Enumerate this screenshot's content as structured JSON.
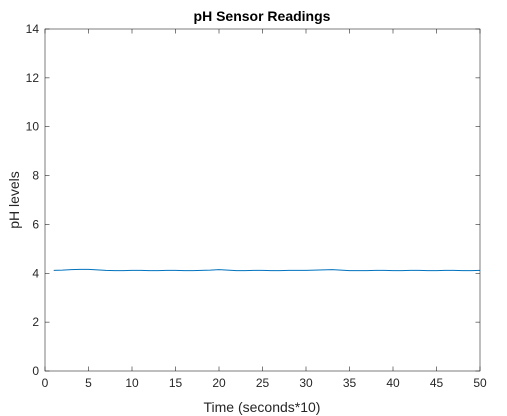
{
  "chart_data": {
    "type": "line",
    "title": "pH Sensor Readings",
    "xlabel": "Time (seconds*10)",
    "ylabel": "pH levels",
    "xlim": [
      0,
      50
    ],
    "ylim": [
      0,
      14
    ],
    "xticks": [
      0,
      5,
      10,
      15,
      20,
      25,
      30,
      35,
      40,
      45,
      50
    ],
    "yticks": [
      0,
      2,
      4,
      6,
      8,
      10,
      12,
      14
    ],
    "grid": false,
    "box": true,
    "series": [
      {
        "color": "#0072bd",
        "x": [
          1,
          2,
          3,
          4,
          5,
          6,
          7,
          8,
          9,
          10,
          11,
          12,
          13,
          14,
          15,
          16,
          17,
          18,
          19,
          20,
          21,
          22,
          23,
          24,
          25,
          26,
          27,
          28,
          29,
          30,
          31,
          32,
          33,
          34,
          35,
          36,
          37,
          38,
          39,
          40,
          41,
          42,
          43,
          44,
          45,
          46,
          47,
          48,
          49,
          50
        ],
        "y": [
          4.12,
          4.13,
          4.15,
          4.16,
          4.16,
          4.14,
          4.12,
          4.11,
          4.11,
          4.12,
          4.12,
          4.11,
          4.11,
          4.12,
          4.12,
          4.11,
          4.11,
          4.12,
          4.13,
          4.15,
          4.13,
          4.11,
          4.11,
          4.12,
          4.12,
          4.11,
          4.11,
          4.12,
          4.12,
          4.12,
          4.13,
          4.14,
          4.15,
          4.13,
          4.11,
          4.11,
          4.11,
          4.12,
          4.12,
          4.11,
          4.11,
          4.12,
          4.12,
          4.11,
          4.11,
          4.12,
          4.12,
          4.11,
          4.11,
          4.12
        ]
      }
    ]
  }
}
